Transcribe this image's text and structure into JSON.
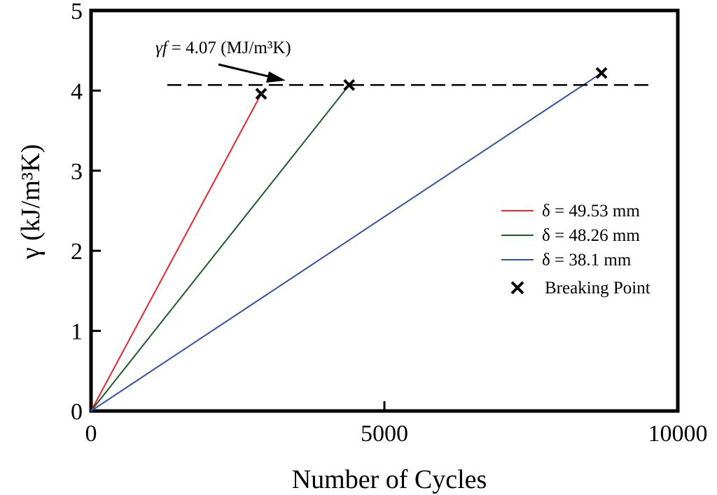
{
  "chart_data": {
    "type": "line",
    "title": "",
    "xlabel": "Number of Cycles",
    "ylabel": "γ (kJ/m³K)",
    "xlim": [
      0,
      10000
    ],
    "ylim": [
      0,
      5
    ],
    "x_ticks": [
      {
        "value": 0,
        "label": "0"
      },
      {
        "value": 5000,
        "label": "5000"
      },
      {
        "value": 10000,
        "label": "10000"
      }
    ],
    "y_ticks": [
      {
        "value": 0,
        "label": "0"
      },
      {
        "value": 1,
        "label": "1"
      },
      {
        "value": 2,
        "label": "2"
      },
      {
        "value": 3,
        "label": "3"
      },
      {
        "value": 4,
        "label": "4"
      },
      {
        "value": 5,
        "label": "5"
      }
    ],
    "grid": false,
    "legend_position": "right",
    "series": [
      {
        "name": "δ = 49.53 mm",
        "color": "#e8262b",
        "x": [
          0,
          2900
        ],
        "y": [
          0,
          3.96
        ]
      },
      {
        "name": "δ = 48.26 mm",
        "color": "#1e5a2a",
        "x": [
          0,
          4400
        ],
        "y": [
          0,
          4.07
        ]
      },
      {
        "name": "δ = 38.1 mm",
        "color": "#3451a4",
        "x": [
          0,
          8700
        ],
        "y": [
          0,
          4.22
        ]
      }
    ],
    "breaking_points": {
      "name": "Breaking Point",
      "marker": "x",
      "points": [
        {
          "x": 2900,
          "y": 3.96
        },
        {
          "x": 4400,
          "y": 4.07
        },
        {
          "x": 8700,
          "y": 4.22
        }
      ]
    },
    "reference_line": {
      "y": 4.07,
      "x_start": 1300,
      "x_end": 9500,
      "style": "dashed",
      "label_symbol": "γf",
      "label_value": "= 4.07 (MJ/m³K)"
    }
  }
}
